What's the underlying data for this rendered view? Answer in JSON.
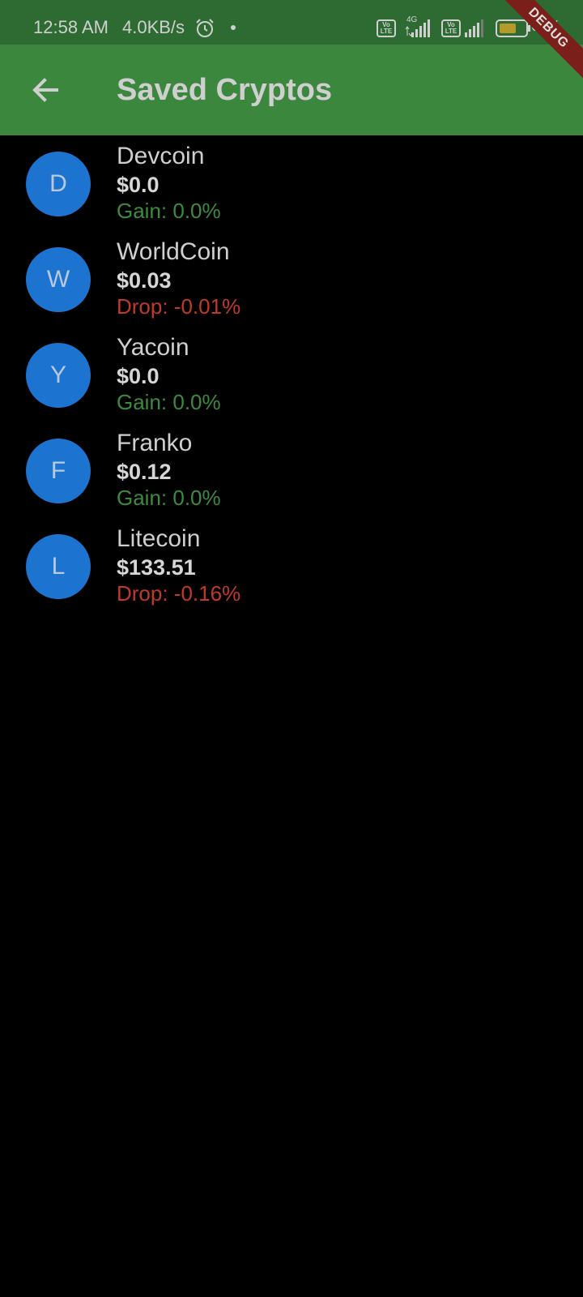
{
  "status_bar": {
    "time": "12:58 AM",
    "speed": "4.0KB/s",
    "net_label": "4G",
    "volte_label": "Vo LTE",
    "battery_text": "64%",
    "debug_label": "DEBUG",
    "icons": [
      "alarm-icon",
      "dot-icon",
      "volte-icon",
      "signal-icon",
      "battery-icon"
    ]
  },
  "app_bar": {
    "back_icon": "arrow-left-icon",
    "title": "Saved Cryptos"
  },
  "colors": {
    "status_bar_bg": "#2e6b32",
    "app_bar_bg": "#3b873e",
    "avatar_bg": "#1c74d0",
    "gain": "#3d8b40",
    "drop": "#c0392b"
  },
  "cryptos": [
    {
      "initial": "D",
      "name": "Devcoin",
      "price": "$0.0",
      "change": "Gain: 0.0%",
      "trend": "gain"
    },
    {
      "initial": "W",
      "name": "WorldCoin",
      "price": "$0.03",
      "change": "Drop: -0.01%",
      "trend": "drop"
    },
    {
      "initial": "Y",
      "name": "Yacoin",
      "price": "$0.0",
      "change": "Gain: 0.0%",
      "trend": "gain"
    },
    {
      "initial": "F",
      "name": "Franko",
      "price": "$0.12",
      "change": "Gain: 0.0%",
      "trend": "gain"
    },
    {
      "initial": "L",
      "name": "Litecoin",
      "price": "$133.51",
      "change": "Drop: -0.16%",
      "trend": "drop"
    }
  ]
}
